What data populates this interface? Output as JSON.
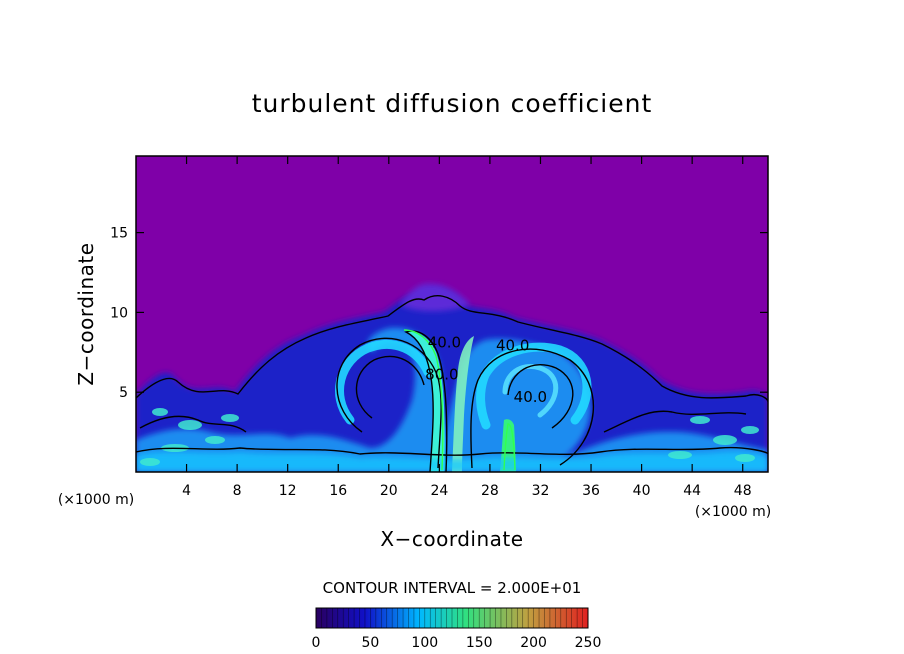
{
  "chart_data": {
    "type": "heatmap",
    "title": "turbulent diffusion coefficient",
    "xlabel": "X−coordinate",
    "ylabel": "Z−coordinate",
    "x_unit": "(×1000 m)",
    "y_unit": "(×1000 m)",
    "xlim": [
      0,
      50
    ],
    "ylim": [
      0,
      19.8
    ],
    "x_ticks": [
      4,
      8,
      12,
      16,
      20,
      24,
      28,
      32,
      36,
      40,
      44,
      48
    ],
    "y_ticks": [
      5,
      10,
      15
    ],
    "contour_interval_text": "CONTOUR INTERVAL = 2.000E+01",
    "contour_interval": 20,
    "colorbar": {
      "min": 0,
      "max": 250,
      "ticks": [
        0,
        50,
        100,
        150,
        200,
        250
      ],
      "colors": [
        "#2a0060",
        "#1010c8",
        "#00b8ff",
        "#30e080",
        "#c0a040",
        "#e02020"
      ]
    },
    "background_color": "#7f00a8",
    "contour_labels": [
      {
        "text": "40.0",
        "x": 24.4,
        "z": 7.8
      },
      {
        "text": "80.0",
        "x": 24.2,
        "z": 5.8
      },
      {
        "text": "40.0",
        "x": 29.8,
        "z": 7.6
      },
      {
        "text": "40.0",
        "x": 31.2,
        "z": 4.4
      }
    ]
  }
}
